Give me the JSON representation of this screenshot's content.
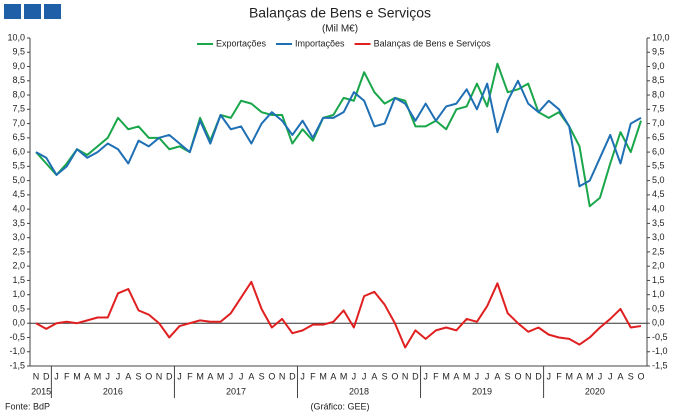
{
  "chart_data": {
    "type": "line",
    "title": "Balanças de Bens e Serviços",
    "subtitle": "(Mil M€)",
    "source": "Fonte: BdP",
    "credit": "(Gráfico: GEE)",
    "categories": [
      "N",
      "D",
      "J",
      "F",
      "M",
      "A",
      "M",
      "J",
      "J",
      "A",
      "S",
      "O",
      "N",
      "D",
      "J",
      "F",
      "M",
      "A",
      "M",
      "J",
      "J",
      "A",
      "S",
      "O",
      "N",
      "D",
      "J",
      "F",
      "M",
      "A",
      "M",
      "J",
      "J",
      "A",
      "S",
      "O",
      "N",
      "D",
      "J",
      "F",
      "M",
      "A",
      "M",
      "J",
      "J",
      "A",
      "S",
      "O",
      "N",
      "D",
      "J",
      "F",
      "M",
      "A",
      "M",
      "J",
      "J",
      "A",
      "S",
      "O"
    ],
    "years": [
      "2015",
      "2016",
      "2017",
      "2018",
      "2019",
      "2020"
    ],
    "series": [
      {
        "name": "Exportações",
        "color": "#1aa64a",
        "values": [
          6.0,
          5.6,
          5.2,
          5.6,
          6.1,
          5.9,
          6.2,
          6.5,
          7.2,
          6.8,
          6.9,
          6.5,
          6.5,
          6.1,
          6.2,
          6.0,
          7.2,
          6.4,
          7.3,
          7.2,
          7.8,
          7.7,
          7.4,
          7.3,
          7.3,
          6.3,
          6.8,
          6.4,
          7.2,
          7.3,
          7.9,
          7.8,
          8.8,
          8.1,
          7.7,
          7.9,
          7.8,
          6.9,
          6.9,
          7.1,
          6.8,
          7.5,
          7.6,
          8.4,
          7.6,
          9.1,
          8.1,
          8.2,
          8.4,
          7.4,
          7.2,
          7.4,
          6.9,
          6.2,
          4.1,
          4.4,
          5.6,
          6.7,
          6.0,
          7.1
        ]
      },
      {
        "name": "Importações",
        "color": "#1f6fb5",
        "values": [
          6.0,
          5.8,
          5.2,
          5.5,
          6.1,
          5.8,
          6.0,
          6.3,
          6.1,
          5.6,
          6.4,
          6.2,
          6.5,
          6.6,
          6.3,
          6.0,
          7.1,
          6.3,
          7.3,
          6.8,
          6.9,
          6.3,
          7.0,
          7.4,
          7.1,
          6.6,
          7.1,
          6.5,
          7.2,
          7.2,
          7.4,
          8.1,
          7.8,
          6.9,
          7.0,
          7.9,
          7.7,
          7.1,
          7.7,
          7.1,
          7.6,
          7.7,
          8.2,
          7.5,
          8.4,
          6.7,
          7.8,
          8.5,
          7.7,
          7.4,
          7.8,
          7.5,
          6.9,
          4.8,
          5.0,
          5.8,
          6.6,
          5.6,
          7.0,
          7.2
        ]
      },
      {
        "name": "Balanças de Bens e Serviços",
        "color": "#e02020",
        "values": [
          0.0,
          -0.2,
          0.0,
          0.05,
          0.0,
          0.1,
          0.2,
          0.2,
          1.05,
          1.2,
          0.45,
          0.3,
          0.0,
          -0.5,
          -0.1,
          0.0,
          0.1,
          0.05,
          0.05,
          0.35,
          0.9,
          1.45,
          0.5,
          -0.15,
          0.15,
          -0.35,
          -0.25,
          -0.05,
          -0.05,
          0.05,
          0.45,
          -0.15,
          0.95,
          1.1,
          0.65,
          0.0,
          -0.85,
          -0.25,
          -0.55,
          -0.25,
          -0.15,
          -0.25,
          0.15,
          0.05,
          0.6,
          1.4,
          0.35,
          0.0,
          -0.3,
          -0.15,
          -0.4,
          -0.5,
          -0.55,
          -0.75,
          -0.5,
          -0.15,
          0.15,
          0.5,
          -0.15,
          -0.1
        ]
      }
    ],
    "ylim": [
      -1.5,
      10.0
    ],
    "yticks": [
      {
        "value": -1.5,
        "label": "-1,5"
      },
      {
        "value": -1.0,
        "label": "-1,0"
      },
      {
        "value": -0.5,
        "label": "-0,5"
      },
      {
        "value": 0.0,
        "label": "0,0"
      },
      {
        "value": 0.5,
        "label": "0,5"
      },
      {
        "value": 1.0,
        "label": "1,0"
      },
      {
        "value": 1.5,
        "label": "1,5"
      },
      {
        "value": 2.0,
        "label": "2,0"
      },
      {
        "value": 2.5,
        "label": "2,5"
      },
      {
        "value": 3.0,
        "label": "3,0"
      },
      {
        "value": 3.5,
        "label": "3,5"
      },
      {
        "value": 4.0,
        "label": "4,0"
      },
      {
        "value": 4.5,
        "label": "4,5"
      },
      {
        "value": 5.0,
        "label": "5,0"
      },
      {
        "value": 5.5,
        "label": "5,5"
      },
      {
        "value": 6.0,
        "label": "6,0"
      },
      {
        "value": 6.5,
        "label": "6,5"
      },
      {
        "value": 7.0,
        "label": "7,0"
      },
      {
        "value": 7.5,
        "label": "7,5"
      },
      {
        "value": 8.0,
        "label": "8,0"
      },
      {
        "value": 8.5,
        "label": "8,5"
      },
      {
        "value": 9.0,
        "label": "9,0"
      },
      {
        "value": 9.5,
        "label": "9,5"
      },
      {
        "value": 10.0,
        "label": "10,0"
      }
    ],
    "legend": "top"
  }
}
